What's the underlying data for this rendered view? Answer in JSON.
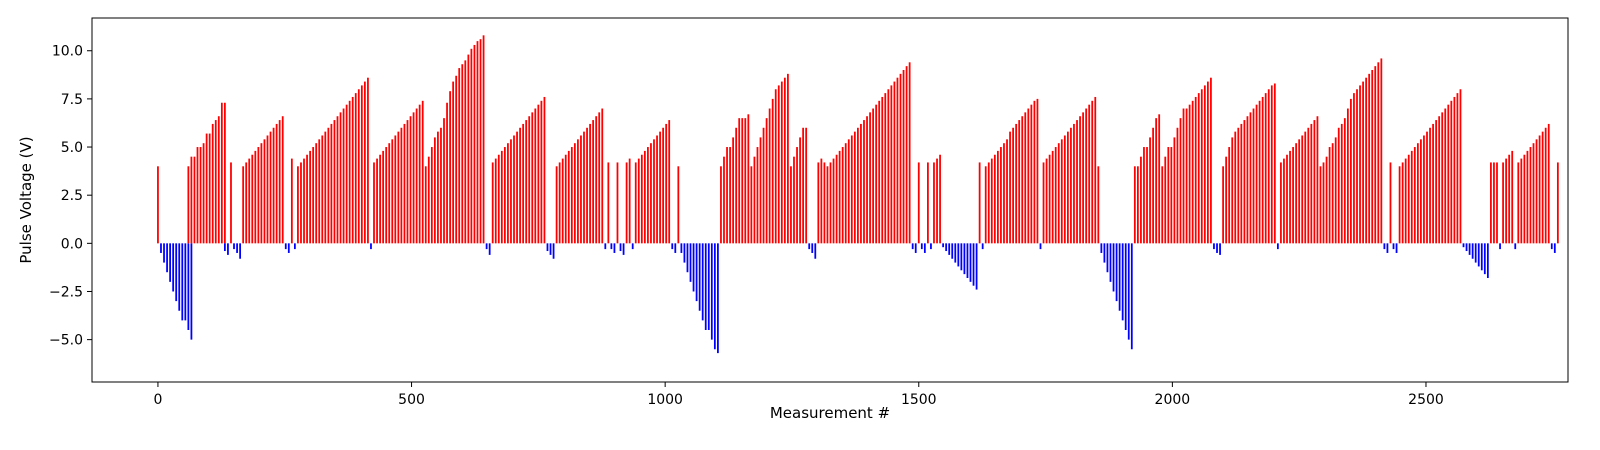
{
  "chart_data": {
    "type": "bar",
    "title": "",
    "xlabel": "Measurement #",
    "ylabel": "Pulse Voltage (V)",
    "xlim": [
      -130,
      2780
    ],
    "ylim": [
      -7.2,
      11.7
    ],
    "xticks": [
      0,
      500,
      1000,
      1500,
      2000,
      2500
    ],
    "xtick_labels": [
      "0",
      "500",
      "1000",
      "1500",
      "2000",
      "2500"
    ],
    "yticks": [
      -5.0,
      -2.5,
      0.0,
      2.5,
      5.0,
      7.5,
      10.0
    ],
    "ytick_labels": [
      "−5.0",
      "−2.5",
      "0.0",
      "2.5",
      "5.0",
      "7.5",
      "10.0"
    ],
    "grid": false,
    "bar_width": 3.5,
    "colors": {
      "positive": "#ff0000",
      "negative": "#0000ff"
    },
    "segments": [
      {
        "x_start": 0,
        "step": 6,
        "values": [
          4.0
        ]
      },
      {
        "x_start": 6,
        "step": 6,
        "values": [
          -0.5,
          -1.0,
          -1.5,
          -2.0,
          -2.5,
          -3.0,
          -3.5,
          -4.0,
          -4.0,
          -4.5,
          -5.0
        ]
      },
      {
        "x_start": 60,
        "step": 6,
        "values": [
          4.0,
          4.5,
          4.5,
          5.0,
          5.0,
          5.2,
          5.7,
          5.7,
          6.2,
          6.4,
          6.6,
          7.3,
          7.3
        ]
      },
      {
        "x_start": 132,
        "step": 6,
        "values": [
          -0.4,
          -0.6
        ]
      },
      {
        "x_start": 144,
        "step": 6,
        "values": [
          4.2
        ]
      },
      {
        "x_start": 150,
        "step": 6,
        "values": [
          -0.3,
          -0.5,
          -0.8
        ]
      },
      {
        "x_start": 168,
        "step": 6,
        "values": [
          4.0,
          4.2,
          4.4,
          4.6,
          4.8,
          5.0,
          5.2,
          5.4,
          5.6,
          5.8,
          6.0,
          6.2,
          6.4,
          6.6
        ]
      },
      {
        "x_start": 252,
        "step": 6,
        "values": [
          -0.3,
          -0.5
        ]
      },
      {
        "x_start": 264,
        "step": 6,
        "values": [
          4.4
        ]
      },
      {
        "x_start": 270,
        "step": 6,
        "values": [
          -0.3
        ]
      },
      {
        "x_start": 276,
        "step": 6,
        "values": [
          4.0,
          4.2,
          4.4,
          4.6,
          4.8,
          5.0,
          5.2,
          5.4,
          5.6,
          5.8,
          6.0,
          6.2,
          6.4,
          6.6,
          6.8,
          7.0,
          7.2,
          7.4,
          7.6,
          7.8,
          8.0,
          8.2,
          8.4,
          8.6
        ]
      },
      {
        "x_start": 420,
        "step": 6,
        "values": [
          -0.3
        ]
      },
      {
        "x_start": 426,
        "step": 6,
        "values": [
          4.2,
          4.4,
          4.6,
          4.8,
          5.0,
          5.2,
          5.4,
          5.6,
          5.8,
          6.0,
          6.2,
          6.4,
          6.6,
          6.8,
          7.0,
          7.2,
          7.4
        ]
      },
      {
        "x_start": 528,
        "step": 6,
        "values": [
          4.0,
          4.5,
          5.0,
          5.5,
          5.8,
          6.0,
          6.5,
          7.3,
          7.9,
          8.4,
          8.7,
          9.1,
          9.3,
          9.5,
          9.8,
          10.1,
          10.3,
          10.5,
          10.6,
          10.8
        ]
      },
      {
        "x_start": 648,
        "step": 6,
        "values": [
          -0.3,
          -0.6
        ]
      },
      {
        "x_start": 660,
        "step": 6,
        "values": [
          4.2,
          4.4,
          4.6,
          4.8,
          5.0,
          5.2,
          5.4,
          5.6,
          5.8,
          6.0,
          6.2,
          6.4,
          6.6,
          6.8,
          7.0,
          7.2,
          7.4,
          7.6
        ]
      },
      {
        "x_start": 768,
        "step": 6,
        "values": [
          -0.4,
          -0.6,
          -0.8
        ]
      },
      {
        "x_start": 786,
        "step": 6,
        "values": [
          4.0,
          4.2,
          4.4,
          4.6,
          4.8,
          5.0,
          5.2,
          5.4,
          5.6,
          5.8,
          6.0,
          6.2,
          6.4,
          6.6,
          6.8,
          7.0
        ]
      },
      {
        "x_start": 882,
        "step": 6,
        "values": [
          -0.3
        ]
      },
      {
        "x_start": 888,
        "step": 6,
        "values": [
          4.2
        ]
      },
      {
        "x_start": 894,
        "step": 6,
        "values": [
          -0.3,
          -0.5
        ]
      },
      {
        "x_start": 906,
        "step": 6,
        "values": [
          4.2
        ]
      },
      {
        "x_start": 912,
        "step": 6,
        "values": [
          -0.4,
          -0.6
        ]
      },
      {
        "x_start": 924,
        "step": 6,
        "values": [
          4.2,
          4.4
        ]
      },
      {
        "x_start": 936,
        "step": 6,
        "values": [
          -0.3
        ]
      },
      {
        "x_start": 942,
        "step": 6,
        "values": [
          4.2,
          4.4,
          4.6,
          4.8,
          5.0,
          5.2,
          5.4,
          5.6,
          5.8,
          6.0,
          6.2,
          6.4
        ]
      },
      {
        "x_start": 1014,
        "step": 6,
        "values": [
          -0.3,
          -0.5
        ]
      },
      {
        "x_start": 1026,
        "step": 6,
        "values": [
          4.0
        ]
      },
      {
        "x_start": 1032,
        "step": 6,
        "values": [
          -0.5,
          -1.0,
          -1.5,
          -2.0,
          -2.5,
          -3.0,
          -3.5,
          -4.0,
          -4.5,
          -4.5,
          -5.0,
          -5.5,
          -5.7
        ]
      },
      {
        "x_start": 1110,
        "step": 6,
        "values": [
          4.0,
          4.5,
          5.0,
          5.0,
          5.5,
          6.0,
          6.5,
          6.5,
          6.5,
          6.7
        ]
      },
      {
        "x_start": 1170,
        "step": 6,
        "values": [
          4.0,
          4.5,
          5.0,
          5.5,
          6.0,
          6.5,
          7.0,
          7.5,
          8.0,
          8.2,
          8.4,
          8.6,
          8.8
        ]
      },
      {
        "x_start": 1248,
        "step": 6,
        "values": [
          4.0,
          4.5,
          5.0,
          5.5,
          6.0,
          6.0
        ]
      },
      {
        "x_start": 1284,
        "step": 6,
        "values": [
          -0.3,
          -0.5,
          -0.8
        ]
      },
      {
        "x_start": 1302,
        "step": 6,
        "values": [
          4.2,
          4.4,
          4.2,
          4.0,
          4.2,
          4.4,
          4.6,
          4.8,
          5.0,
          5.2,
          5.4,
          5.6,
          5.8,
          6.0,
          6.2,
          6.4,
          6.6,
          6.8,
          7.0,
          7.2,
          7.4,
          7.6,
          7.8,
          8.0,
          8.2,
          8.4,
          8.6,
          8.8,
          9.0,
          9.2,
          9.4
        ]
      },
      {
        "x_start": 1488,
        "step": 6,
        "values": [
          -0.3,
          -0.5
        ]
      },
      {
        "x_start": 1500,
        "step": 6,
        "values": [
          4.2
        ]
      },
      {
        "x_start": 1506,
        "step": 6,
        "values": [
          -0.3,
          -0.5
        ]
      },
      {
        "x_start": 1518,
        "step": 6,
        "values": [
          4.2
        ]
      },
      {
        "x_start": 1524,
        "step": 6,
        "values": [
          -0.3
        ]
      },
      {
        "x_start": 1530,
        "step": 6,
        "values": [
          4.2,
          4.4,
          4.6
        ]
      },
      {
        "x_start": 1548,
        "step": 6,
        "values": [
          -0.2,
          -0.4,
          -0.6,
          -0.8,
          -1.0,
          -1.2,
          -1.4,
          -1.6,
          -1.8,
          -2.0,
          -2.2,
          -2.4
        ]
      },
      {
        "x_start": 1620,
        "step": 6,
        "values": [
          4.2
        ]
      },
      {
        "x_start": 1626,
        "step": 6,
        "values": [
          -0.3
        ]
      },
      {
        "x_start": 1632,
        "step": 6,
        "values": [
          4.0,
          4.2,
          4.4,
          4.6,
          4.8,
          5.0,
          5.2,
          5.4,
          5.8,
          6.0,
          6.2,
          6.4,
          6.6,
          6.8,
          7.0,
          7.2,
          7.4,
          7.5
        ]
      },
      {
        "x_start": 1740,
        "step": 6,
        "values": [
          -0.3
        ]
      },
      {
        "x_start": 1746,
        "step": 6,
        "values": [
          4.2,
          4.4,
          4.6,
          4.8,
          5.0,
          5.2,
          5.4,
          5.6,
          5.8,
          6.0,
          6.2,
          6.4,
          6.6,
          6.8,
          7.0,
          7.2,
          7.4,
          7.6,
          4.0
        ]
      },
      {
        "x_start": 1860,
        "step": 6,
        "values": [
          -0.5,
          -1.0,
          -1.5,
          -2.0,
          -2.5,
          -3.0,
          -3.5,
          -4.0,
          -4.5,
          -5.0,
          -5.5
        ]
      },
      {
        "x_start": 1926,
        "step": 6,
        "values": [
          4.0,
          4.0,
          4.5,
          5.0,
          5.0,
          5.5,
          6.0,
          6.5,
          6.7,
          4.0,
          4.5,
          5.0,
          5.0,
          5.5,
          6.0,
          6.5,
          7.0,
          7.0,
          7.2,
          7.4,
          7.6,
          7.8,
          8.0,
          8.2,
          8.4,
          8.6
        ]
      },
      {
        "x_start": 2082,
        "step": 6,
        "values": [
          -0.3,
          -0.5,
          -0.6
        ]
      },
      {
        "x_start": 2100,
        "step": 6,
        "values": [
          4.0,
          4.5,
          5.0,
          5.5,
          5.8,
          6.0,
          6.2,
          6.4,
          6.6,
          6.8,
          7.0,
          7.2,
          7.4,
          7.6,
          7.8,
          8.0,
          8.2,
          8.3
        ]
      },
      {
        "x_start": 2208,
        "step": 6,
        "values": [
          -0.3
        ]
      },
      {
        "x_start": 2214,
        "step": 6,
        "values": [
          4.2,
          4.4,
          4.6,
          4.8,
          5.0,
          5.2,
          5.4,
          5.6,
          5.8,
          6.0,
          6.2,
          6.4,
          6.6
        ]
      },
      {
        "x_start": 2292,
        "step": 6,
        "values": [
          4.0,
          4.2,
          4.5,
          5.0,
          5.2,
          5.5,
          6.0,
          6.2,
          6.5,
          7.0,
          7.5,
          7.8,
          8.0,
          8.2,
          8.4,
          8.6,
          8.8,
          9.0,
          9.2,
          9.4,
          9.6
        ]
      },
      {
        "x_start": 2418,
        "step": 6,
        "values": [
          -0.3,
          -0.5
        ]
      },
      {
        "x_start": 2430,
        "step": 6,
        "values": [
          4.2
        ]
      },
      {
        "x_start": 2436,
        "step": 6,
        "values": [
          -0.3,
          -0.5
        ]
      },
      {
        "x_start": 2448,
        "step": 6,
        "values": [
          4.0,
          4.2,
          4.4,
          4.6,
          4.8,
          5.0,
          5.2,
          5.4,
          5.6,
          5.8,
          6.0,
          6.2,
          6.4,
          6.6,
          6.8,
          7.0,
          7.2,
          7.4,
          7.6,
          7.8,
          8.0
        ]
      },
      {
        "x_start": 2574,
        "step": 6,
        "values": [
          -0.2,
          -0.4,
          -0.6,
          -0.8,
          -1.0,
          -1.2,
          -1.4,
          -1.6,
          -1.8
        ]
      },
      {
        "x_start": 2628,
        "step": 6,
        "values": [
          4.2,
          4.2,
          4.2
        ]
      },
      {
        "x_start": 2646,
        "step": 6,
        "values": [
          -0.3
        ]
      },
      {
        "x_start": 2652,
        "step": 6,
        "values": [
          4.2,
          4.4,
          4.6,
          4.8
        ]
      },
      {
        "x_start": 2676,
        "step": 6,
        "values": [
          -0.3
        ]
      },
      {
        "x_start": 2682,
        "step": 6,
        "values": [
          4.2,
          4.4,
          4.6,
          4.8,
          5.0,
          5.2,
          5.4,
          5.6,
          5.8,
          6.0,
          6.2
        ]
      },
      {
        "x_start": 2748,
        "step": 6,
        "values": [
          -0.3,
          -0.5
        ]
      },
      {
        "x_start": 2760,
        "step": 6,
        "values": [
          4.2
        ]
      }
    ]
  }
}
